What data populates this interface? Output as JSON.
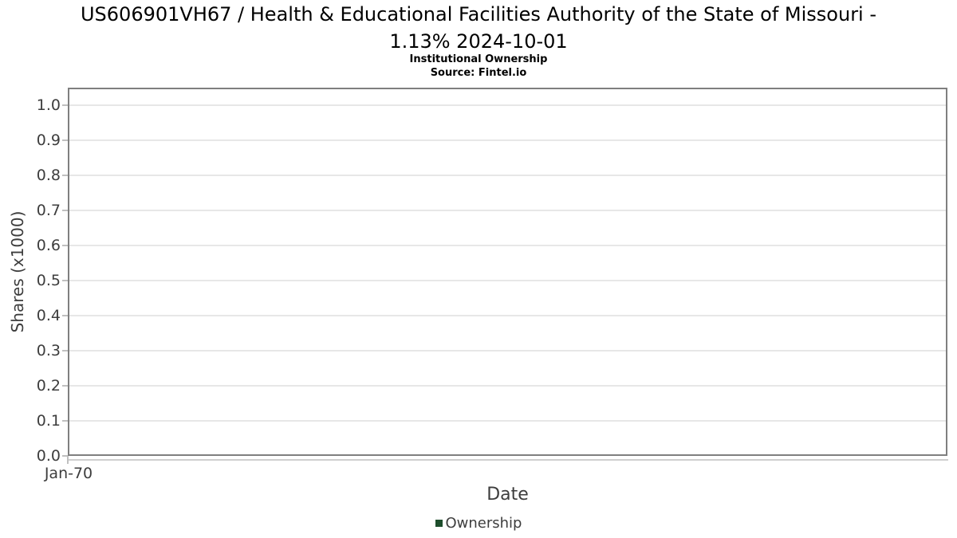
{
  "header": {
    "title_line1": "US606901VH67 / Health & Educational Facilities Authority of the State of Missouri -",
    "title_line2": "1.13% 2024-10-01",
    "subtitle": "Institutional Ownership",
    "source": "Source: Fintel.io"
  },
  "chart_data": {
    "type": "line",
    "title": "US606901VH67 / Health & Educational Facilities Authority of the State of Missouri - 1.13% 2024-10-01",
    "subtitle": "Institutional Ownership",
    "source": "Source: Fintel.io",
    "xlabel": "Date",
    "ylabel": "Shares (x1000)",
    "xtick_labels": [
      "Jan-70"
    ],
    "ytick_labels": [
      "0.0",
      "0.1",
      "0.2",
      "0.3",
      "0.4",
      "0.5",
      "0.6",
      "0.7",
      "0.8",
      "0.9",
      "1.0"
    ],
    "ylim": [
      0.0,
      1.05
    ],
    "grid": "horizontal",
    "legend_position": "bottom",
    "series": [
      {
        "name": "Ownership",
        "color": "#1e4e2c",
        "x": [],
        "values": []
      }
    ]
  },
  "colors": {
    "plot_border": "#7f7f7f",
    "gridline": "#e7e7e7",
    "tick": "#c0c0c0",
    "axis_text": "#3d3d3d",
    "title_text": "#000000",
    "legend_marker": "#1e4e2c",
    "background": "#ffffff"
  }
}
